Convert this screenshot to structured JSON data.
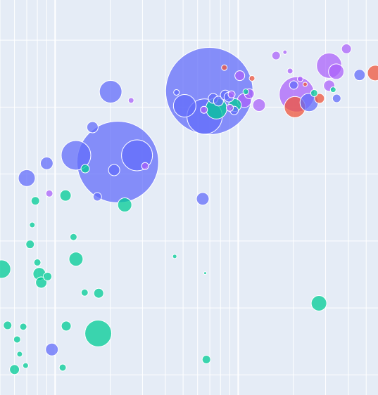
{
  "colors": {
    "background": "#e5ecf6",
    "grid": "#ffffff",
    "groups": {
      "blue": "#636efa",
      "green": "#00cc96",
      "red": "#ef553b",
      "purple": "#ab63fa"
    }
  },
  "chart_data": {
    "type": "scatter",
    "title": "",
    "xlabel": "",
    "ylabel": "",
    "x_scale": "log",
    "xlim": [
      0.5,
      58
    ],
    "ylim": [
      27,
      86
    ],
    "grid": true,
    "legend": "none",
    "x_gridlines": [
      0.5,
      0.6,
      0.7,
      0.8,
      0.9,
      1,
      2,
      3,
      4,
      5,
      6,
      7,
      8,
      9,
      10,
      20,
      30,
      40,
      50
    ],
    "y_gridlines": [
      30,
      40,
      50,
      60,
      70,
      80
    ],
    "series": [
      {
        "group": "blue",
        "opacity": 0.75,
        "points": [
          {
            "x": 2.01,
            "y": 72.3,
            "size": 16
          },
          {
            "x": 4.6,
            "y": 72.2,
            "size": 4
          },
          {
            "x": 5.1,
            "y": 70.2,
            "size": 16
          },
          {
            "x": 6.55,
            "y": 68.6,
            "size": 25
          },
          {
            "x": 6.95,
            "y": 72.4,
            "size": 62
          },
          {
            "x": 7.3,
            "y": 71.3,
            "size": 7
          },
          {
            "x": 7.8,
            "y": 70.9,
            "size": 7
          },
          {
            "x": 8.5,
            "y": 71.8,
            "size": 7
          },
          {
            "x": 8.9,
            "y": 71.5,
            "size": 7
          },
          {
            "x": 9.5,
            "y": 69.5,
            "size": 6
          },
          {
            "x": 1.6,
            "y": 67.0,
            "size": 8
          },
          {
            "x": 1.3,
            "y": 62.8,
            "size": 21
          },
          {
            "x": 2.2,
            "y": 61.8,
            "size": 58
          },
          {
            "x": 2.8,
            "y": 62.8,
            "size": 22
          },
          {
            "x": 2.1,
            "y": 60.6,
            "size": 8
          },
          {
            "x": 0.9,
            "y": 61.6,
            "size": 9
          },
          {
            "x": 0.7,
            "y": 59.4,
            "size": 12
          },
          {
            "x": 1.7,
            "y": 56.6,
            "size": 6
          },
          {
            "x": 6.4,
            "y": 56.3,
            "size": 9
          },
          {
            "x": 20.1,
            "y": 73.3,
            "size": 6
          },
          {
            "x": 24.4,
            "y": 70.7,
            "size": 13
          },
          {
            "x": 34.5,
            "y": 71.3,
            "size": 6
          },
          {
            "x": 46.0,
            "y": 74.8,
            "size": 8
          },
          {
            "x": 0.96,
            "y": 33.8,
            "size": 9
          }
        ]
      },
      {
        "group": "green",
        "opacity": 0.75,
        "points": [
          {
            "x": 0.51,
            "y": 45.8,
            "size": 13
          },
          {
            "x": 0.55,
            "y": 37.4,
            "size": 6
          },
          {
            "x": 0.62,
            "y": 35.3,
            "size": 5
          },
          {
            "x": 0.64,
            "y": 33.1,
            "size": 4
          },
          {
            "x": 0.6,
            "y": 30.8,
            "size": 7
          },
          {
            "x": 0.69,
            "y": 31.4,
            "size": 4
          },
          {
            "x": 0.67,
            "y": 37.2,
            "size": 5
          },
          {
            "x": 0.73,
            "y": 49.5,
            "size": 6
          },
          {
            "x": 0.75,
            "y": 52.4,
            "size": 4
          },
          {
            "x": 0.78,
            "y": 56.0,
            "size": 6
          },
          {
            "x": 0.8,
            "y": 46.8,
            "size": 5
          },
          {
            "x": 0.82,
            "y": 45.1,
            "size": 9
          },
          {
            "x": 0.84,
            "y": 43.8,
            "size": 8
          },
          {
            "x": 0.91,
            "y": 44.7,
            "size": 6
          },
          {
            "x": 1.14,
            "y": 56.8,
            "size": 8
          },
          {
            "x": 1.26,
            "y": 50.6,
            "size": 5
          },
          {
            "x": 1.3,
            "y": 47.3,
            "size": 10
          },
          {
            "x": 1.15,
            "y": 37.3,
            "size": 7
          },
          {
            "x": 1.1,
            "y": 31.1,
            "size": 5
          },
          {
            "x": 1.45,
            "y": 42.3,
            "size": 5
          },
          {
            "x": 1.46,
            "y": 60.8,
            "size": 6
          },
          {
            "x": 1.73,
            "y": 42.2,
            "size": 7
          },
          {
            "x": 1.72,
            "y": 36.2,
            "size": 19
          },
          {
            "x": 2.4,
            "y": 55.4,
            "size": 10
          },
          {
            "x": 4.5,
            "y": 47.7,
            "size": 3
          },
          {
            "x": 6.6,
            "y": 45.2,
            "size": 2
          },
          {
            "x": 6.7,
            "y": 32.3,
            "size": 6
          },
          {
            "x": 7.6,
            "y": 69.8,
            "size": 15
          },
          {
            "x": 9.6,
            "y": 70.3,
            "size": 9
          },
          {
            "x": 11.0,
            "y": 72.3,
            "size": 4
          },
          {
            "x": 27.6,
            "y": 40.7,
            "size": 11
          },
          {
            "x": 33.0,
            "y": 72.6,
            "size": 4
          },
          {
            "x": 26.0,
            "y": 72.1,
            "size": 5
          }
        ]
      },
      {
        "group": "red",
        "opacity": 0.75,
        "points": [
          {
            "x": 8.4,
            "y": 75.9,
            "size": 4
          },
          {
            "x": 11.9,
            "y": 74.3,
            "size": 4
          },
          {
            "x": 20.4,
            "y": 70.0,
            "size": 15
          },
          {
            "x": 23.2,
            "y": 73.4,
            "size": 3
          },
          {
            "x": 27.8,
            "y": 71.3,
            "size": 7
          },
          {
            "x": 56.0,
            "y": 75.1,
            "size": 11
          }
        ]
      },
      {
        "group": "purple",
        "opacity": 0.75,
        "points": [
          {
            "x": 2.6,
            "y": 71.0,
            "size": 4
          },
          {
            "x": 3.1,
            "y": 61.2,
            "size": 5
          },
          {
            "x": 0.93,
            "y": 57.1,
            "size": 5
          },
          {
            "x": 6.5,
            "y": 69.6,
            "size": 5
          },
          {
            "x": 9.0,
            "y": 69.9,
            "size": 5
          },
          {
            "x": 9.2,
            "y": 71.9,
            "size": 5
          },
          {
            "x": 10.2,
            "y": 74.7,
            "size": 7
          },
          {
            "x": 10.8,
            "y": 71.0,
            "size": 10
          },
          {
            "x": 11.5,
            "y": 72.0,
            "size": 7
          },
          {
            "x": 13.0,
            "y": 70.3,
            "size": 9
          },
          {
            "x": 16.1,
            "y": 77.7,
            "size": 6
          },
          {
            "x": 18.0,
            "y": 78.2,
            "size": 3
          },
          {
            "x": 20.9,
            "y": 71.9,
            "size": 25
          },
          {
            "x": 31.4,
            "y": 76.2,
            "size": 18
          },
          {
            "x": 34.3,
            "y": 75.3,
            "size": 11
          },
          {
            "x": 31.4,
            "y": 73.2,
            "size": 8
          },
          {
            "x": 19.2,
            "y": 75.4,
            "size": 4
          },
          {
            "x": 21.8,
            "y": 74.2,
            "size": 4
          },
          {
            "x": 39.0,
            "y": 78.7,
            "size": 7
          }
        ]
      }
    ]
  }
}
